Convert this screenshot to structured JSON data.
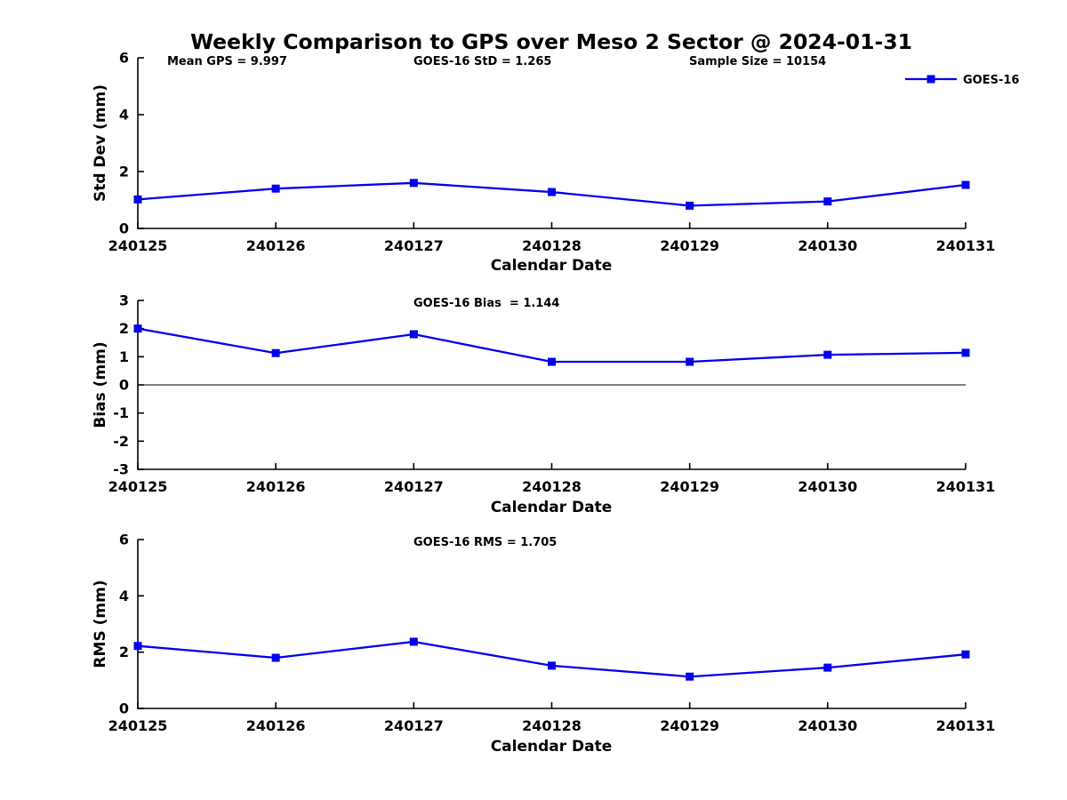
{
  "title": "Weekly Comparison to GPS over Meso 2 Sector @ 2024-01-31",
  "legend": {
    "label": "GOES-16"
  },
  "colors": {
    "line": "#0000EE",
    "axis": "#000000",
    "background": "#ffffff"
  },
  "chart_data": [
    {
      "type": "line",
      "title": "",
      "annotations": [
        "Mean GPS = 9.997",
        "GOES-16 StD = 1.265",
        "Sample Size = 10154"
      ],
      "categories": [
        "240125",
        "240126",
        "240127",
        "240128",
        "240129",
        "240130",
        "240131"
      ],
      "series": [
        {
          "name": "GOES-16",
          "values": [
            1.02,
            1.4,
            1.6,
            1.28,
            0.8,
            0.95,
            1.53
          ]
        }
      ],
      "xlabel": "Calendar Date",
      "ylabel": "Std Dev (mm)",
      "ylim": [
        0,
        6
      ],
      "yticks": [
        0,
        2,
        4,
        6
      ],
      "grid": false,
      "zero_line": false,
      "legend_position": "top-right",
      "marker": "square"
    },
    {
      "type": "line",
      "title": "",
      "annotations": [
        "GOES-16 Bias  = 1.144"
      ],
      "categories": [
        "240125",
        "240126",
        "240127",
        "240128",
        "240129",
        "240130",
        "240131"
      ],
      "series": [
        {
          "name": "GOES-16",
          "values": [
            2.0,
            1.13,
            1.8,
            0.82,
            0.82,
            1.07,
            1.14
          ]
        }
      ],
      "xlabel": "Calendar Date",
      "ylabel": "Bias (mm)",
      "ylim": [
        -3,
        3
      ],
      "yticks": [
        -3,
        -2,
        -1,
        0,
        1,
        2,
        3
      ],
      "grid": false,
      "zero_line": true,
      "marker": "square"
    },
    {
      "type": "line",
      "title": "",
      "annotations": [
        "GOES-16 RMS = 1.705"
      ],
      "categories": [
        "240125",
        "240126",
        "240127",
        "240128",
        "240129",
        "240130",
        "240131"
      ],
      "series": [
        {
          "name": "GOES-16",
          "values": [
            2.22,
            1.8,
            2.37,
            1.52,
            1.13,
            1.45,
            1.92
          ]
        }
      ],
      "xlabel": "Calendar Date",
      "ylabel": "RMS (mm)",
      "ylim": [
        0,
        6
      ],
      "yticks": [
        0,
        2,
        4,
        6
      ],
      "grid": false,
      "zero_line": false,
      "marker": "square"
    }
  ]
}
